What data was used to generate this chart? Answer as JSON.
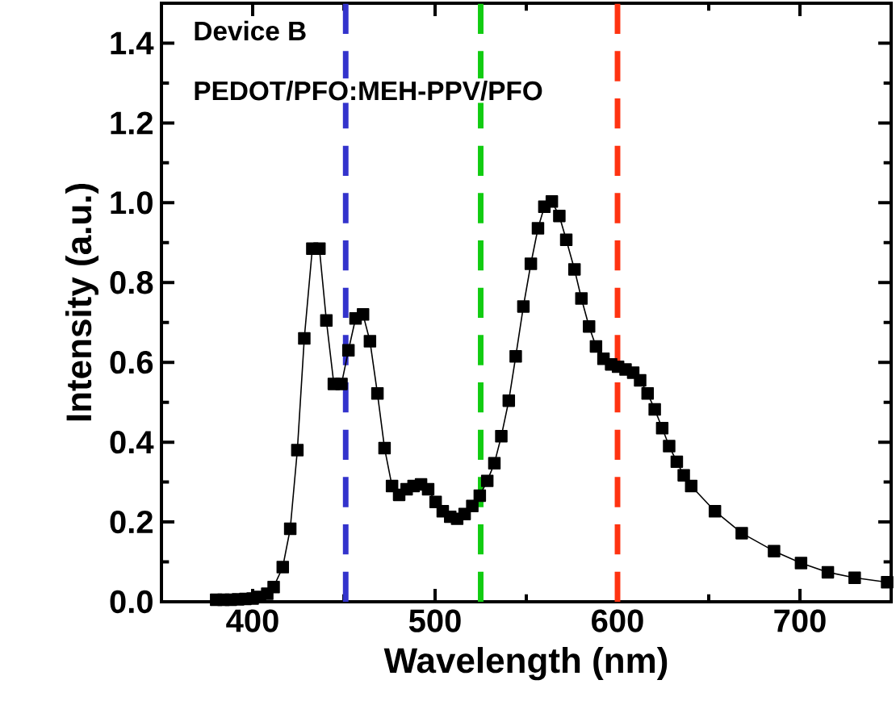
{
  "chart_data": {
    "type": "line",
    "xlabel": "Wavelength (nm)",
    "ylabel": "Intensity  (a.u.)",
    "annotations": [
      "Device B",
      "PEDOT/PFO:MEH-PPV/PFO"
    ],
    "x": [
      380,
      384,
      388,
      392,
      396,
      400,
      404,
      408,
      411.5,
      416.5,
      420.6,
      424.5,
      428.3,
      432.7,
      436.6,
      440.4,
      444.5,
      448.7,
      452.5,
      456.4,
      460.5,
      464.3,
      468.4,
      472.3,
      476.4,
      480.3,
      484.4,
      488.2,
      492.3,
      496.2,
      500.3,
      504.2,
      508.3,
      512.1,
      516.2,
      520.4,
      524.5,
      528.6,
      532.5,
      536.3,
      540.4,
      544.2,
      548.4,
      552.5,
      556.4,
      559.9,
      564.0,
      568.1,
      571.9,
      576.4,
      580.2,
      584.4,
      588.2,
      592.3,
      596.5,
      600.3,
      604.4,
      608.6,
      612.4,
      616.5,
      620.4,
      624.5,
      628.3,
      632.5,
      636.3,
      640.4,
      653.4,
      668.1,
      685.8,
      700.6,
      715.3,
      730,
      747.8
    ],
    "series": [
      {
        "color": "#000000",
        "values": [
          0.005,
          0.005,
          0.005,
          0.006,
          0.007,
          0.008,
          0.012,
          0.02,
          0.037,
          0.087,
          0.183,
          0.38,
          0.66,
          0.885,
          0.885,
          0.705,
          0.546,
          0.546,
          0.63,
          0.71,
          0.72,
          0.653,
          0.522,
          0.385,
          0.29,
          0.268,
          0.282,
          0.29,
          0.294,
          0.282,
          0.25,
          0.227,
          0.213,
          0.208,
          0.22,
          0.24,
          0.266,
          0.303,
          0.347,
          0.415,
          0.504,
          0.615,
          0.74,
          0.847,
          0.936,
          0.99,
          1.003,
          0.967,
          0.907,
          0.833,
          0.76,
          0.69,
          0.64,
          0.609,
          0.595,
          0.589,
          0.582,
          0.574,
          0.555,
          0.522,
          0.482,
          0.435,
          0.39,
          0.351,
          0.317,
          0.29,
          0.227,
          0.172,
          0.127,
          0.097,
          0.074,
          0.06,
          0.049
        ]
      }
    ],
    "marker": "square",
    "line_style": "solid",
    "xlim": [
      350,
      750
    ],
    "xticks": [
      400,
      500,
      600,
      700
    ],
    "ylim": [
      0,
      1.5
    ],
    "yticks": [
      {
        "value": 0,
        "label": "0.0"
      },
      {
        "value": 0.2,
        "label": "0.2"
      },
      {
        "value": 0.4,
        "label": "0.4"
      },
      {
        "value": 0.6,
        "label": "0.6"
      },
      {
        "value": 0.8,
        "label": "0.8"
      },
      {
        "value": 1.0,
        "label": "1.0"
      },
      {
        "value": 1.2,
        "label": "1.2"
      },
      {
        "value": 1.4,
        "label": "1.4"
      }
    ],
    "ref_lines": [
      {
        "axis": "x",
        "value": 451,
        "color": "#3333cc",
        "line_style": "dashed"
      },
      {
        "axis": "x",
        "value": 525,
        "color": "#11cc11",
        "line_style": "dashed"
      },
      {
        "axis": "x",
        "value": 600,
        "color": "#ff3311",
        "line_style": "dashed"
      }
    ],
    "grid": false
  }
}
